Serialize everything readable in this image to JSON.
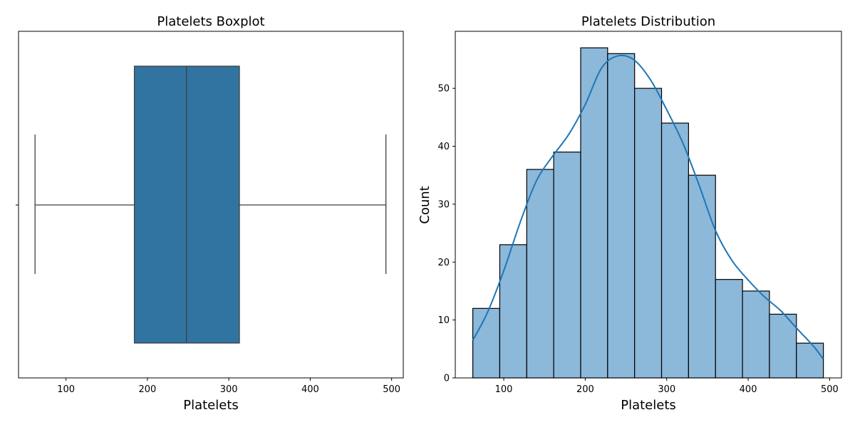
{
  "chart_data": [
    {
      "type": "box",
      "title": "Platelets Boxplot",
      "xlabel": "Platelets",
      "ylabel": "",
      "xlim": [
        41.7,
        514.3
      ],
      "xticks": [
        100,
        200,
        300,
        400,
        500
      ],
      "box": {
        "whisker_low": 62,
        "q1": 184,
        "median": 248,
        "q3": 313,
        "whisker_high": 493
      },
      "colors": {
        "box_fill": "#3274a1",
        "line": "#3f3f3f"
      }
    },
    {
      "type": "bar",
      "title": "Platelets Distribution",
      "xlabel": "Platelets",
      "ylabel": "Count",
      "xlim": [
        40.5,
        514.5
      ],
      "ylim": [
        0,
        59.85
      ],
      "xticks": [
        100,
        200,
        300,
        400,
        500
      ],
      "yticks": [
        0,
        10,
        20,
        30,
        40,
        50
      ],
      "bin_edges": [
        62,
        95.1,
        128.2,
        161.3,
        194.4,
        227.5,
        260.6,
        293.7,
        326.8,
        359.9,
        393.0,
        426.1,
        459.2,
        492.3
      ],
      "values": [
        12,
        23,
        36,
        39,
        57,
        56,
        50,
        44,
        35,
        17,
        15,
        11,
        6
      ],
      "kde": {
        "x": [
          62,
          80,
          100,
          120,
          140,
          160,
          180,
          200,
          220,
          240,
          260,
          280,
          300,
          320,
          340,
          360,
          380,
          400,
          420,
          440,
          460,
          480,
          492
        ],
        "y": [
          6.5,
          11.3,
          18.5,
          26.8,
          34,
          38.3,
          42.1,
          47.2,
          53.5,
          55.6,
          54.9,
          51.5,
          46.3,
          40.5,
          33.2,
          25.4,
          20.3,
          16.9,
          14,
          11.6,
          8.5,
          5.5,
          3.3
        ]
      },
      "colors": {
        "bar_fill": "#8cb8da",
        "bar_edge": "#000000",
        "kde": "#1f77b4"
      }
    }
  ]
}
